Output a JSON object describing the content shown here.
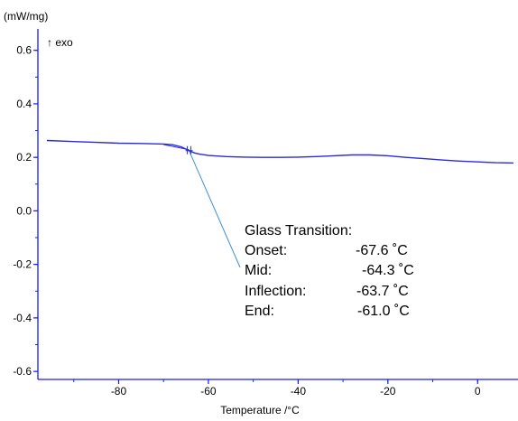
{
  "chart_data": {
    "type": "line",
    "y_unit": "(mW/mg)",
    "exo_label": "↑ exo",
    "xlabel": "Temperature /°C",
    "xlim": [
      -98,
      9
    ],
    "ylim": [
      -0.63,
      0.68
    ],
    "x_ticks": [
      -80,
      -60,
      -40,
      -20,
      0
    ],
    "y_ticks": [
      0.6,
      0.4,
      0.2,
      0.0,
      -0.2,
      -0.4,
      -0.6
    ],
    "y_tick_labels": [
      "0.6",
      "0.4",
      "0.2",
      "0.0",
      "-0.2",
      "-0.4",
      "-0.6"
    ],
    "series": [
      {
        "color": "#2a2ae0",
        "x": [
          -96,
          -90,
          -85,
          -80,
          -75,
          -70,
          -68,
          -66,
          -64.3,
          -63,
          -62,
          -60,
          -56,
          -52,
          -48,
          -44,
          -40,
          -36,
          -32,
          -28,
          -24,
          -20,
          -16,
          -12,
          -8,
          -4,
          0,
          4,
          8
        ],
        "y": [
          0.263,
          0.259,
          0.256,
          0.253,
          0.252,
          0.25,
          0.247,
          0.239,
          0.225,
          0.216,
          0.212,
          0.207,
          0.203,
          0.201,
          0.2,
          0.2,
          0.201,
          0.203,
          0.206,
          0.209,
          0.209,
          0.206,
          0.2,
          0.195,
          0.19,
          0.186,
          0.183,
          0.18,
          0.179
        ]
      }
    ],
    "annotation": {
      "title": "Glass Transition:",
      "rows": [
        {
          "label": "Onset:",
          "value": "-67.6 ˚C"
        },
        {
          "label": "Mid:",
          "value": "-64.3 ˚C"
        },
        {
          "label": "Inflection:",
          "value": "-63.7 ˚C"
        },
        {
          "label": "End:",
          "value": "-61.0 ˚C"
        }
      ],
      "midpoint": {
        "x": -64.3,
        "y": 0.225
      }
    },
    "colors": {
      "axis": "#1a1aff",
      "tangent": "#3a8fd8",
      "text": "#000000"
    }
  }
}
